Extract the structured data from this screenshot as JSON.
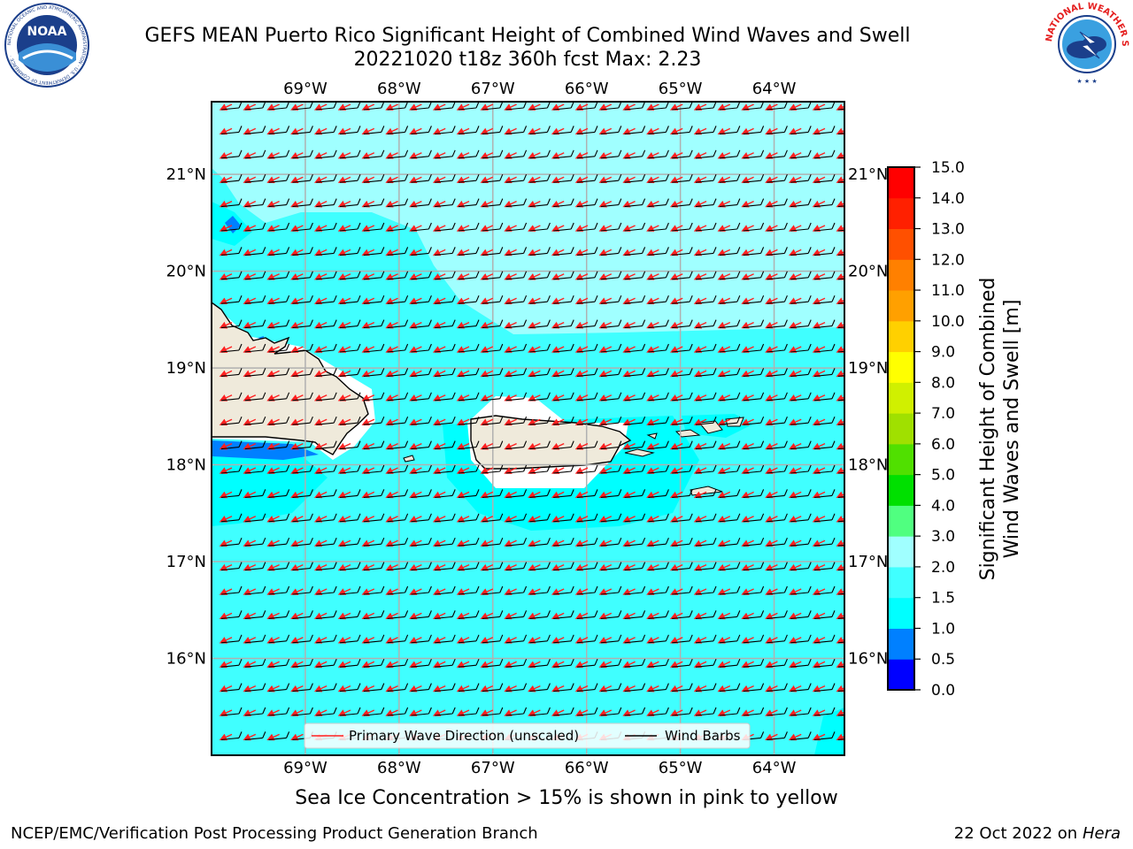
{
  "header": {
    "title_line1": "GEFS MEAN Puerto Rico Significant Height of Combined Wind Waves and Swell",
    "title_line2": "20221020 t18z 360h fcst   Max: 2.23"
  },
  "logos": {
    "left": {
      "text": "NOAA",
      "ring_text": "NATIONAL OCEANIC AND ATMOSPHERIC ADMINISTRATION · U.S. DEPARTMENT OF COMMERCE ·",
      "icon": "noaa-logo"
    },
    "right": {
      "text": "NATIONAL WEATHER SERVICE",
      "icon": "nws-logo"
    }
  },
  "subtitle": "Sea Ice Concentration > 15% is shown in pink to yellow",
  "footer": {
    "left": "NCEP/EMC/Verification Post Processing Product Generation Branch",
    "right_date": "22 Oct 2022 on ",
    "right_machine": "Hera"
  },
  "chart_data": {
    "type": "heatmap",
    "title": "GEFS MEAN Puerto Rico Significant Height of Combined Wind Waves and Swell",
    "lon_ticks": [
      "69°W",
      "68°W",
      "67°W",
      "66°W",
      "65°W",
      "64°W"
    ],
    "lon_values": [
      -69,
      -68,
      -67,
      -66,
      -65,
      -64
    ],
    "lat_ticks": [
      "21°N",
      "20°N",
      "19°N",
      "18°N",
      "17°N",
      "16°N"
    ],
    "lat_values": [
      21,
      20,
      19,
      18,
      17,
      16
    ],
    "lon_range": [
      -70,
      -63.25
    ],
    "lat_range": [
      15,
      21.75
    ],
    "max_value": 2.23,
    "grid": true,
    "legend": {
      "placement": "bottom-center",
      "entries": [
        {
          "label": "Primary Wave Direction (unscaled)",
          "color": "#ff2020"
        },
        {
          "label": "Wind Barbs",
          "color": "#000000"
        }
      ]
    },
    "colorbar": {
      "label": "Significant Height of Combined Wind Waves and Swell [m]",
      "label_line1": "Significant Height of Combined",
      "label_line2": "Wind Waves and Swell [m]",
      "ticks": [
        "0.0",
        "0.5",
        "1.0",
        "1.5",
        "2.0",
        "3.0",
        "4.0",
        "5.0",
        "6.0",
        "7.0",
        "8.0",
        "9.0",
        "10.0",
        "11.0",
        "12.0",
        "13.0",
        "14.0",
        "15.0"
      ],
      "levels": [
        0.0,
        0.5,
        1.0,
        1.5,
        2.0,
        3.0,
        4.0,
        5.0,
        6.0,
        7.0,
        8.0,
        9.0,
        10.0,
        11.0,
        12.0,
        13.0,
        14.0,
        15.0
      ],
      "colors": [
        "#0000ff",
        "#0080ff",
        "#00ffff",
        "#40ffff",
        "#a0ffff",
        "#50ff80",
        "#00e000",
        "#50e000",
        "#a0e000",
        "#d0f000",
        "#ffff00",
        "#ffd000",
        "#ffa000",
        "#ff8000",
        "#ff5000",
        "#ff2000",
        "#ff0000"
      ]
    }
  }
}
